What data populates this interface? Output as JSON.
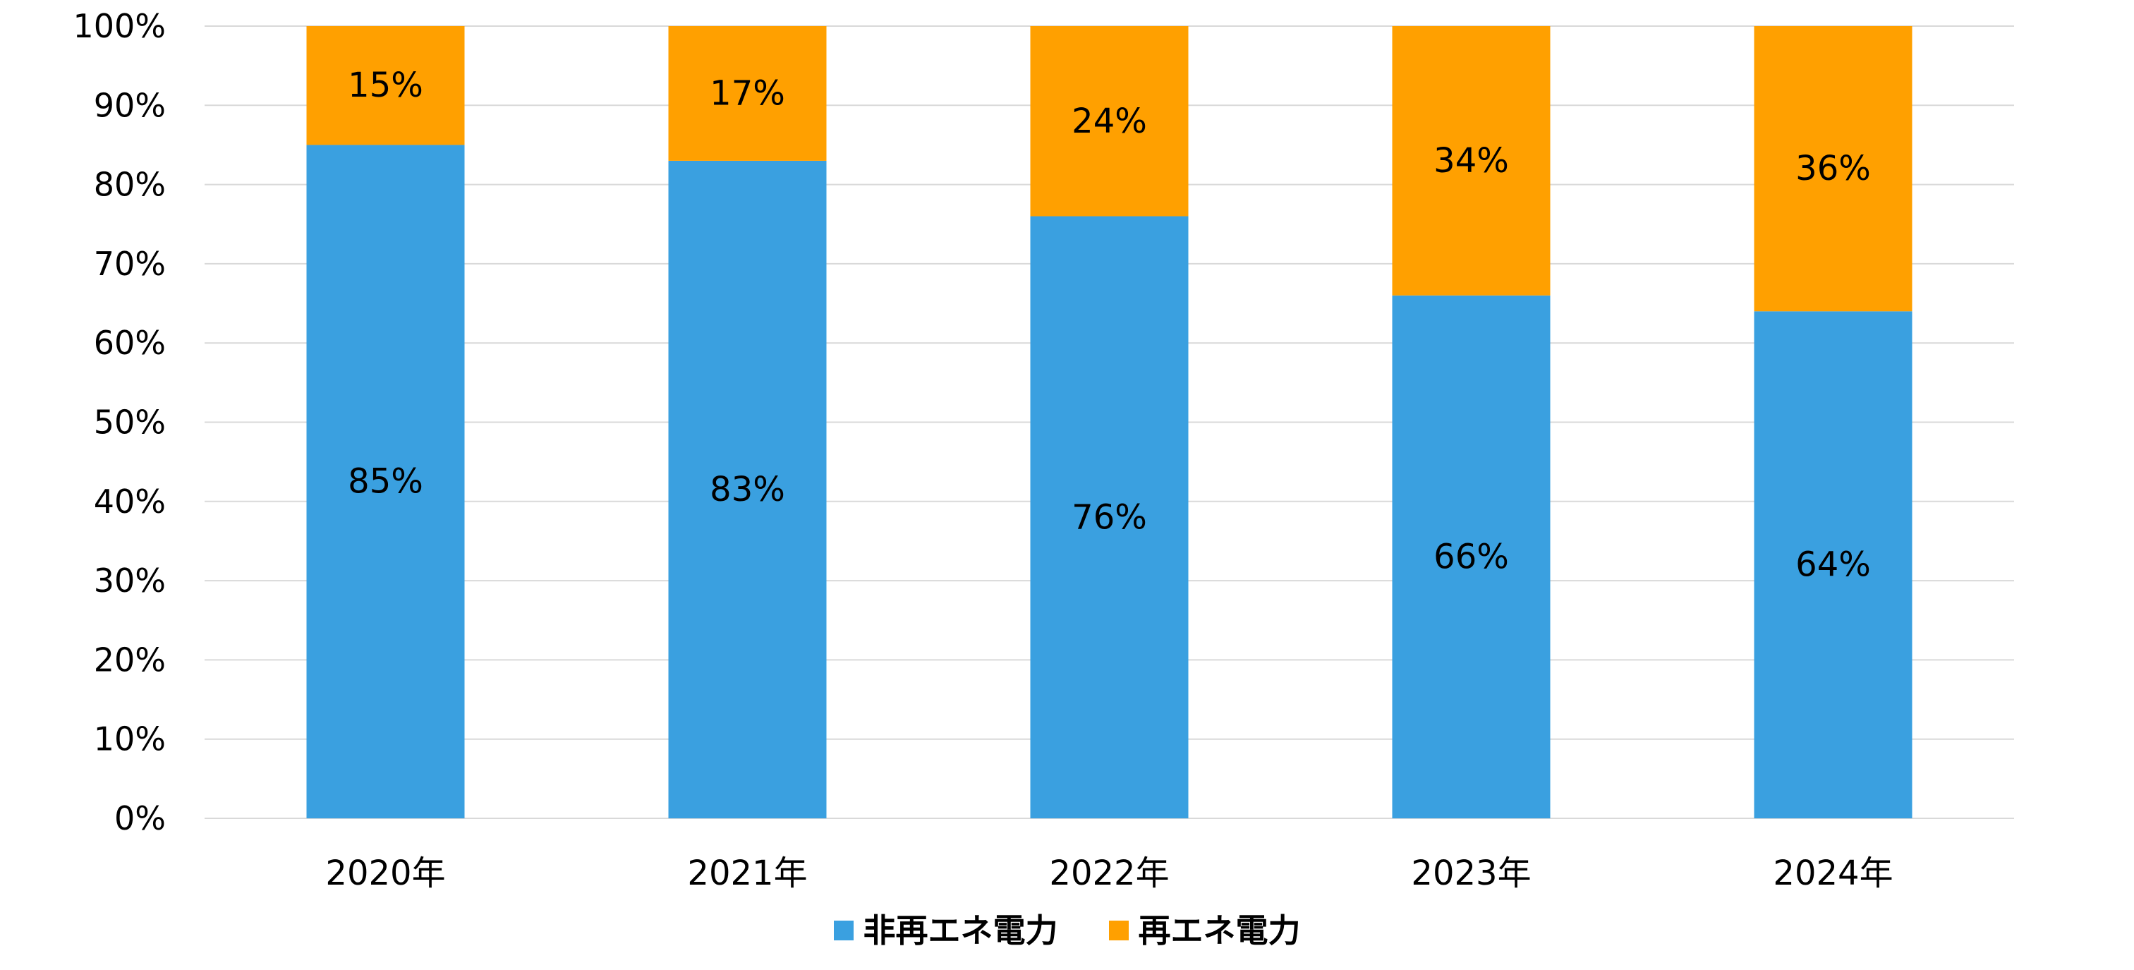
{
  "chart_data": {
    "type": "bar",
    "stacked": true,
    "categories": [
      "2020年",
      "2021年",
      "2022年",
      "2023年",
      "2024年"
    ],
    "series": [
      {
        "name": "非再エネ電力",
        "values": [
          85,
          83,
          76,
          66,
          64
        ],
        "labels": [
          "85%",
          "83%",
          "76%",
          "66%",
          "64%"
        ],
        "color": "#3aa0e0"
      },
      {
        "name": "再エネ電力",
        "values": [
          15,
          17,
          24,
          34,
          36
        ],
        "labels": [
          "15%",
          "17%",
          "24%",
          "34%",
          "36%"
        ],
        "color": "#ffa000"
      }
    ],
    "ylim": [
      0,
      100
    ],
    "yticks": [
      "0%",
      "10%",
      "20%",
      "30%",
      "40%",
      "50%",
      "60%",
      "70%",
      "80%",
      "90%",
      "100%"
    ],
    "grid": true,
    "legend_position": "bottom",
    "colors": {
      "grid": "#d9d9d9",
      "text": "#000000"
    }
  }
}
